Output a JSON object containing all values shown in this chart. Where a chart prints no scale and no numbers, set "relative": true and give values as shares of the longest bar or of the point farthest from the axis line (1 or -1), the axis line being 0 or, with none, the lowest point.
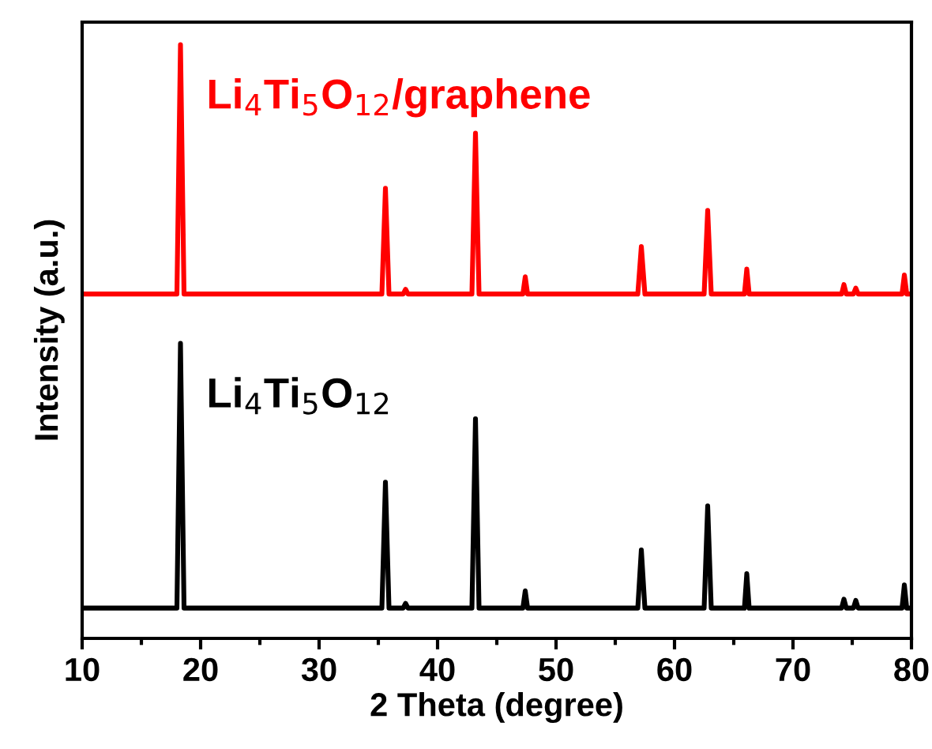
{
  "chart_data": {
    "type": "line",
    "relative": true,
    "xlabel": "2 Theta (degree)",
    "ylabel": "Intensity (a.u.)",
    "xlim": [
      10,
      80
    ],
    "xticks": [
      10,
      20,
      30,
      40,
      50,
      60,
      70,
      80
    ],
    "tick_labels": "x",
    "legend": false,
    "grid": false,
    "marker": "none",
    "line_style": "solid",
    "series": [
      {
        "name": "Li$_{4}$Ti$_{5}$O$_{12}$/graphene",
        "color": "#ff0000",
        "x": [
          10,
          18.0,
          18.3,
          18.6,
          35.3,
          35.6,
          35.9,
          37.1,
          37.3,
          37.5,
          42.9,
          43.2,
          43.5,
          47.2,
          47.4,
          47.6,
          56.9,
          57.2,
          57.5,
          62.5,
          62.8,
          63.1,
          65.9,
          66.1,
          66.3,
          74.1,
          74.3,
          74.5,
          75.1,
          75.3,
          75.5,
          79.2,
          79.4,
          79.6,
          80
        ],
        "values": [
          0.58,
          0.58,
          1.0,
          0.58,
          0.58,
          0.758,
          0.58,
          0.58,
          0.588,
          0.58,
          0.58,
          0.851,
          0.58,
          0.58,
          0.609,
          0.58,
          0.58,
          0.66,
          0.58,
          0.58,
          0.721,
          0.58,
          0.58,
          0.622,
          0.58,
          0.58,
          0.596,
          0.58,
          0.58,
          0.59,
          0.58,
          0.58,
          0.612,
          0.58,
          0.58
        ]
      },
      {
        "name": "Li$_{4}$Ti$_{5}$O$_{12}$",
        "color": "#000000",
        "x": [
          10,
          18.0,
          18.3,
          18.6,
          35.3,
          35.6,
          35.9,
          37.1,
          37.3,
          37.5,
          42.9,
          43.2,
          43.5,
          47.2,
          47.4,
          47.6,
          56.9,
          57.2,
          57.5,
          62.5,
          62.8,
          63.1,
          65.9,
          66.1,
          66.3,
          74.1,
          74.3,
          74.5,
          75.1,
          75.3,
          75.5,
          79.2,
          79.4,
          79.6,
          80
        ],
        "values": [
          0.051,
          0.051,
          0.497,
          0.051,
          0.051,
          0.263,
          0.051,
          0.051,
          0.059,
          0.051,
          0.051,
          0.37,
          0.051,
          0.051,
          0.08,
          0.051,
          0.051,
          0.149,
          0.051,
          0.051,
          0.223,
          0.051,
          0.051,
          0.109,
          0.051,
          0.051,
          0.066,
          0.051,
          0.051,
          0.064,
          0.051,
          0.051,
          0.09,
          0.051,
          0.051
        ]
      }
    ]
  }
}
